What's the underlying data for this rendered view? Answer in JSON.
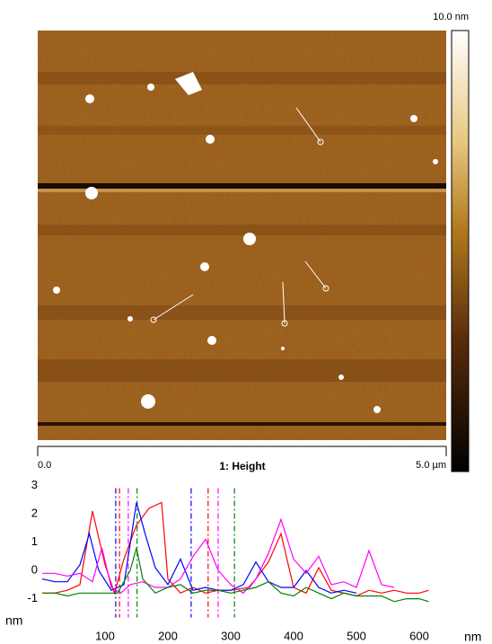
{
  "image": {
    "title": "1: Height",
    "colorbar_max_label": "10.0 nm",
    "scale_start_label": "0.0",
    "scale_end_label": "5.0 µm"
  },
  "chart_data": {
    "type": "line",
    "x_label": "nm",
    "y_label": "nm",
    "xlim": [
      0,
      715
    ],
    "ylim": [
      -1.6,
      3.1
    ],
    "xticks": [
      100,
      200,
      300,
      400,
      500,
      600
    ],
    "yticks": [
      3,
      2,
      1,
      0,
      -1
    ],
    "series": [
      {
        "color": "#ff0000",
        "cursors": [
          123,
          264
        ],
        "x": [
          0,
          20,
          40,
          60,
          80,
          100,
          115,
          130,
          150,
          170,
          190,
          200,
          220,
          240,
          260,
          280,
          300,
          330,
          360,
          380,
          400,
          420,
          440,
          460,
          480,
          500,
          520,
          540,
          560,
          580,
          600,
          615
        ],
        "values": [
          -0.8,
          -0.8,
          -0.7,
          -0.5,
          2.1,
          0.2,
          -0.8,
          0.4,
          1.6,
          2.2,
          2.4,
          -0.3,
          -0.8,
          -0.6,
          -0.8,
          -0.7,
          -0.7,
          -0.6,
          0.3,
          1.3,
          -0.6,
          -0.8,
          0.1,
          -0.7,
          -0.8,
          -0.9,
          -0.7,
          -0.8,
          -0.7,
          -0.8,
          -0.8,
          -0.7
        ]
      },
      {
        "color": "#0000ff",
        "cursors": [
          117,
          237
        ],
        "x": [
          0,
          20,
          40,
          60,
          75,
          90,
          110,
          130,
          150,
          165,
          180,
          200,
          220,
          240,
          260,
          280,
          300,
          320,
          340,
          360,
          380,
          400,
          420,
          440,
          460,
          480,
          500
        ],
        "values": [
          -0.3,
          -0.4,
          -0.4,
          0.2,
          1.3,
          0.0,
          -0.7,
          -0.5,
          2.4,
          1.2,
          0.1,
          -0.5,
          0.4,
          -0.7,
          -0.6,
          -0.7,
          -0.7,
          -0.5,
          0.3,
          -0.4,
          -0.6,
          -0.6,
          0.0,
          -0.6,
          -0.8,
          -0.7,
          -0.8
        ]
      },
      {
        "color": "#ff00ff",
        "cursors": [
          137,
          280
        ],
        "x": [
          0,
          20,
          40,
          60,
          80,
          95,
          110,
          125,
          140,
          160,
          180,
          200,
          220,
          240,
          260,
          280,
          300,
          320,
          340,
          360,
          380,
          400,
          420,
          440,
          460,
          480,
          500,
          520,
          540,
          560
        ],
        "values": [
          -0.1,
          -0.1,
          -0.2,
          -0.1,
          -0.4,
          0.8,
          -0.6,
          -0.8,
          -0.5,
          -0.4,
          -0.6,
          -0.6,
          -0.3,
          0.5,
          1.1,
          0.0,
          -0.5,
          -0.8,
          -0.3,
          0.6,
          1.8,
          0.4,
          -0.1,
          0.5,
          -0.5,
          -0.4,
          -0.6,
          0.7,
          -0.5,
          -0.6
        ]
      },
      {
        "color": "#008000",
        "cursors": [
          151,
          306
        ],
        "x": [
          0,
          20,
          40,
          60,
          80,
          100,
          120,
          140,
          150,
          160,
          180,
          200,
          220,
          240,
          260,
          280,
          300,
          320,
          340,
          360,
          380,
          400,
          420,
          440,
          460,
          480,
          500,
          520,
          540,
          560,
          580,
          600,
          615
        ],
        "values": [
          -0.8,
          -0.8,
          -0.9,
          -0.8,
          -0.8,
          -0.8,
          -0.8,
          0.0,
          0.8,
          -0.3,
          -0.8,
          -0.6,
          -0.5,
          -0.8,
          -0.7,
          -0.7,
          -0.8,
          -0.7,
          -0.6,
          -0.4,
          -0.8,
          -0.9,
          -0.6,
          -0.8,
          -1.0,
          -0.8,
          -0.9,
          -0.9,
          -0.9,
          -1.1,
          -1.0,
          -1.0,
          -1.1
        ]
      }
    ]
  }
}
